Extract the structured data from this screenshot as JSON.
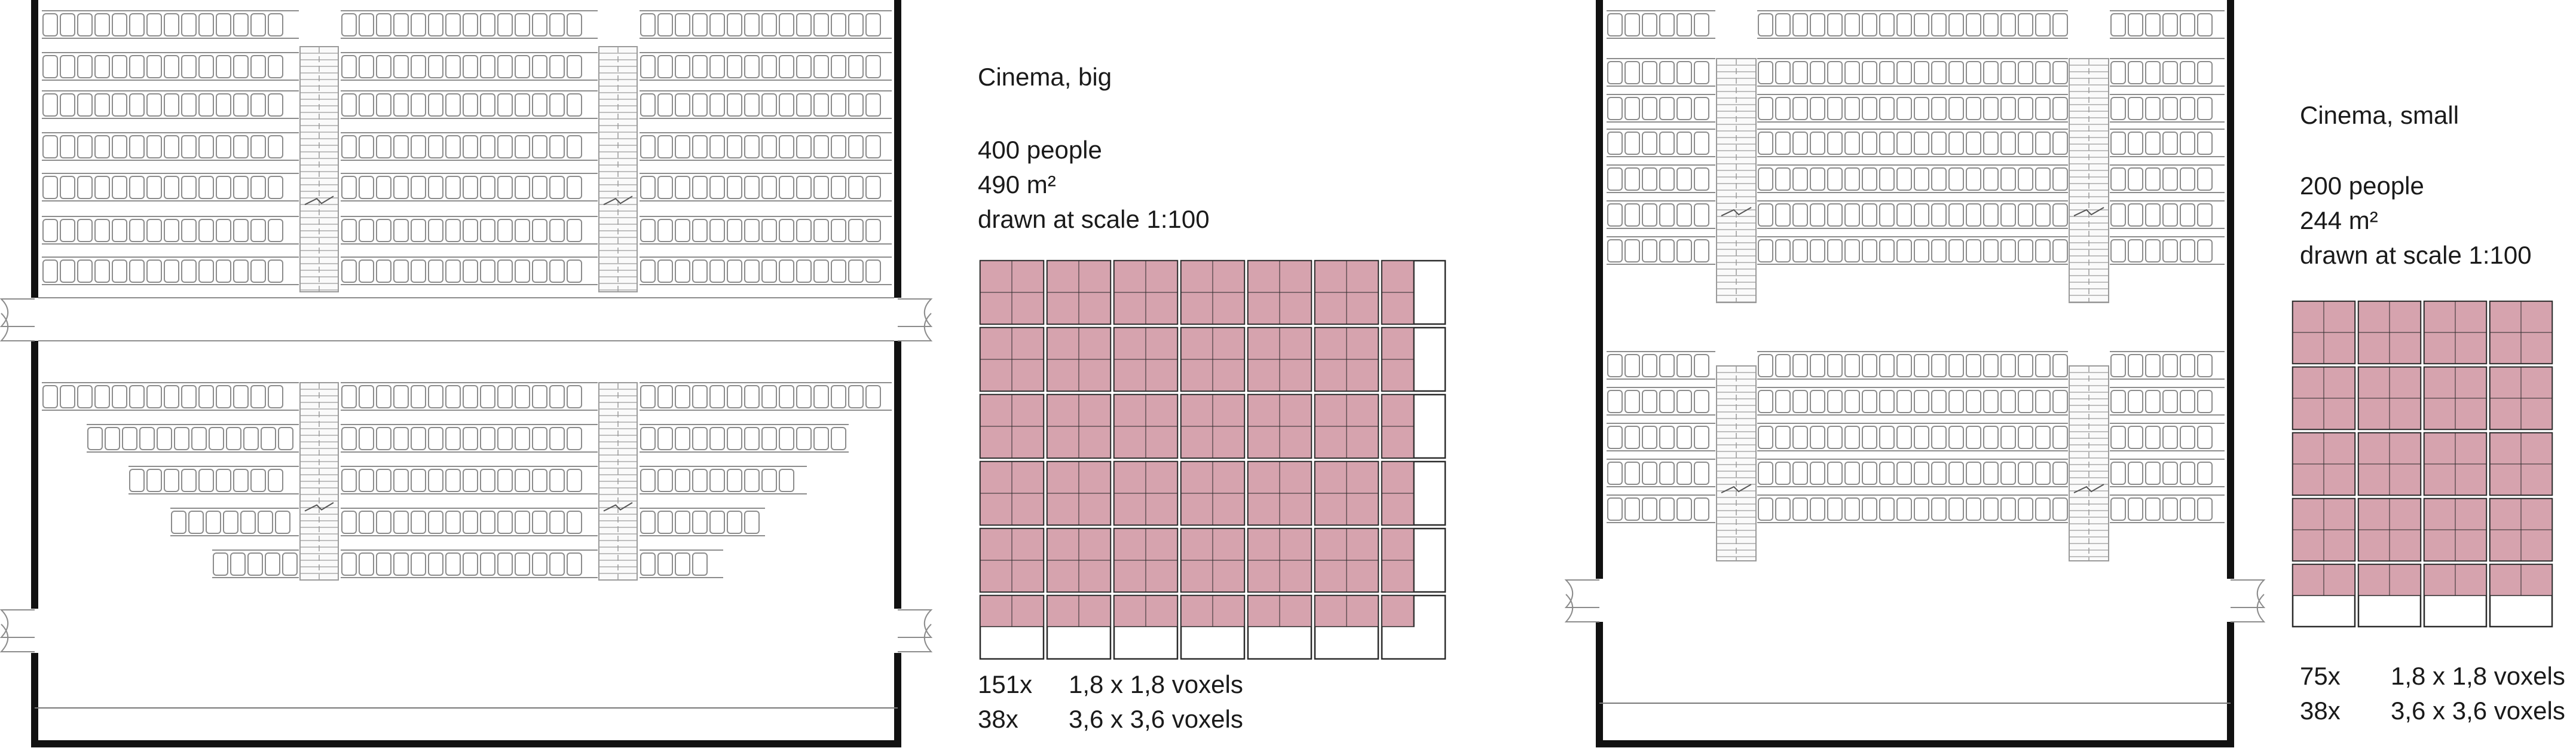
{
  "colors": {
    "wall": "#111111",
    "seat": "#8c8c8c",
    "stair": "#9a9a9a",
    "voxel_fill": "#d6a3ae",
    "voxel_line": "#2a2a2a"
  },
  "big": {
    "title": "Cinema, big",
    "people": "400 people",
    "area": "490 m²",
    "scale": "drawn at scale 1:100",
    "voxels": [
      {
        "count": "151x",
        "size": "1,8 x 1,8 voxels"
      },
      {
        "count": "38x",
        "size": "3,6 x 3,6 voxels"
      }
    ]
  },
  "small": {
    "title": "Cinema, small",
    "people": "200 people",
    "area": "244 m²",
    "scale": "drawn at scale 1:100",
    "voxels": [
      {
        "count": "75x",
        "size": "1,8 x 1,8 voxels"
      },
      {
        "count": "38x",
        "size": "3,6 x 3,6 voxels"
      }
    ]
  },
  "voxel_counts": {
    "big": {
      "small_voxels": 151,
      "large_voxels": 38
    },
    "small": {
      "small_voxels": 75,
      "large_voxels": 38
    }
  }
}
